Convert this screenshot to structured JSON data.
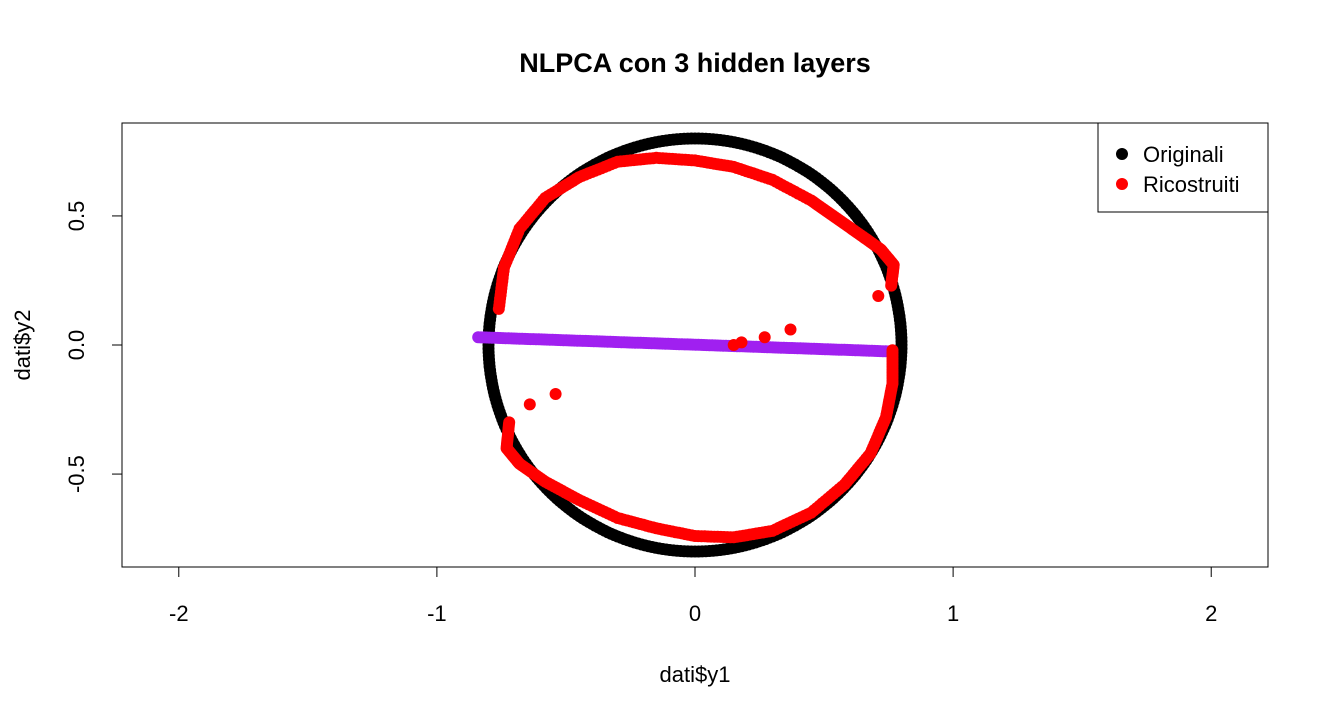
{
  "chart_data": {
    "type": "scatter",
    "title": "NLPCA con 3 hidden layers",
    "xlabel": "dati$y1",
    "ylabel": "dati$y2",
    "xlim": [
      -2.22,
      2.22
    ],
    "ylim": [
      -0.86,
      0.86
    ],
    "x_ticks": [
      -2,
      -1,
      0,
      1,
      2
    ],
    "x_tick_labels": [
      "-2",
      "-1",
      "0",
      "1",
      "2"
    ],
    "y_ticks": [
      -0.5,
      0.0,
      0.5
    ],
    "y_tick_labels": [
      "-0.5",
      "0.0",
      "0.5"
    ],
    "legend_position": "top-right",
    "grid": false,
    "series": [
      {
        "name": "Originali",
        "color": "#000000",
        "marker": "filled-circle",
        "shape": "circle",
        "center": [
          0,
          0
        ],
        "radius": 0.8
      },
      {
        "name": "Ricostruiti",
        "color": "#ff0000",
        "marker": "filled-circle",
        "curve_upper": [
          [
            -0.76,
            0.14
          ],
          [
            -0.74,
            0.3
          ],
          [
            -0.68,
            0.45
          ],
          [
            -0.58,
            0.57
          ],
          [
            -0.45,
            0.65
          ],
          [
            -0.3,
            0.71
          ],
          [
            -0.15,
            0.725
          ],
          [
            0.0,
            0.715
          ],
          [
            0.15,
            0.69
          ],
          [
            0.3,
            0.64
          ],
          [
            0.45,
            0.56
          ],
          [
            0.55,
            0.49
          ],
          [
            0.65,
            0.42
          ],
          [
            0.72,
            0.37
          ],
          [
            0.77,
            0.31
          ],
          [
            0.76,
            0.23
          ]
        ],
        "curve_lower": [
          [
            -0.72,
            -0.3
          ],
          [
            -0.73,
            -0.4
          ],
          [
            -0.68,
            -0.46
          ],
          [
            -0.58,
            -0.53
          ],
          [
            -0.45,
            -0.6
          ],
          [
            -0.3,
            -0.67
          ],
          [
            -0.15,
            -0.71
          ],
          [
            0.0,
            -0.74
          ],
          [
            0.15,
            -0.745
          ],
          [
            0.3,
            -0.72
          ],
          [
            0.45,
            -0.65
          ],
          [
            0.58,
            -0.54
          ],
          [
            0.68,
            -0.42
          ],
          [
            0.74,
            -0.28
          ],
          [
            0.765,
            -0.15
          ],
          [
            0.765,
            -0.02
          ]
        ],
        "scattered": [
          [
            -0.54,
            -0.19
          ],
          [
            -0.64,
            -0.23
          ],
          [
            0.15,
            0.0
          ],
          [
            0.18,
            0.01
          ],
          [
            0.27,
            0.03
          ],
          [
            0.37,
            0.06
          ],
          [
            0.71,
            0.19
          ]
        ]
      },
      {
        "color": "#a020f0",
        "marker": "filled-circle",
        "line_from": [
          -0.84,
          0.03
        ],
        "line_to": [
          0.76,
          -0.025
        ]
      }
    ]
  }
}
